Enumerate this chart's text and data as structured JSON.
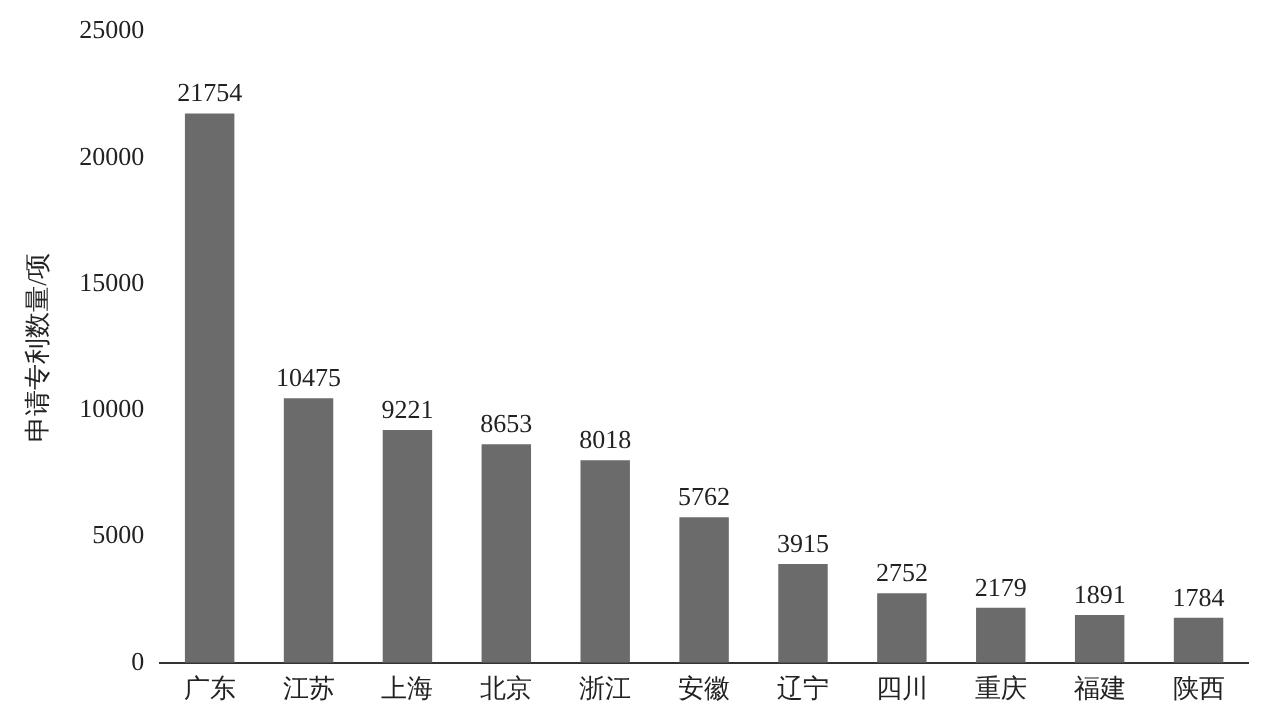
{
  "chart_data": {
    "type": "bar",
    "ylabel": "申请专利数量/项",
    "categories": [
      "广东",
      "江苏",
      "上海",
      "北京",
      "浙江",
      "安徽",
      "辽宁",
      "四川",
      "重庆",
      "福建",
      "陕西"
    ],
    "values": [
      21754,
      10475,
      9221,
      8653,
      8018,
      5762,
      3915,
      2752,
      2179,
      1891,
      1784
    ],
    "color": "#6b6b6b",
    "ylim": [
      0,
      25000
    ],
    "yticks": [
      0,
      5000,
      10000,
      15000,
      20000,
      25000
    ],
    "grid": false,
    "legend": false,
    "data_labels": true
  }
}
